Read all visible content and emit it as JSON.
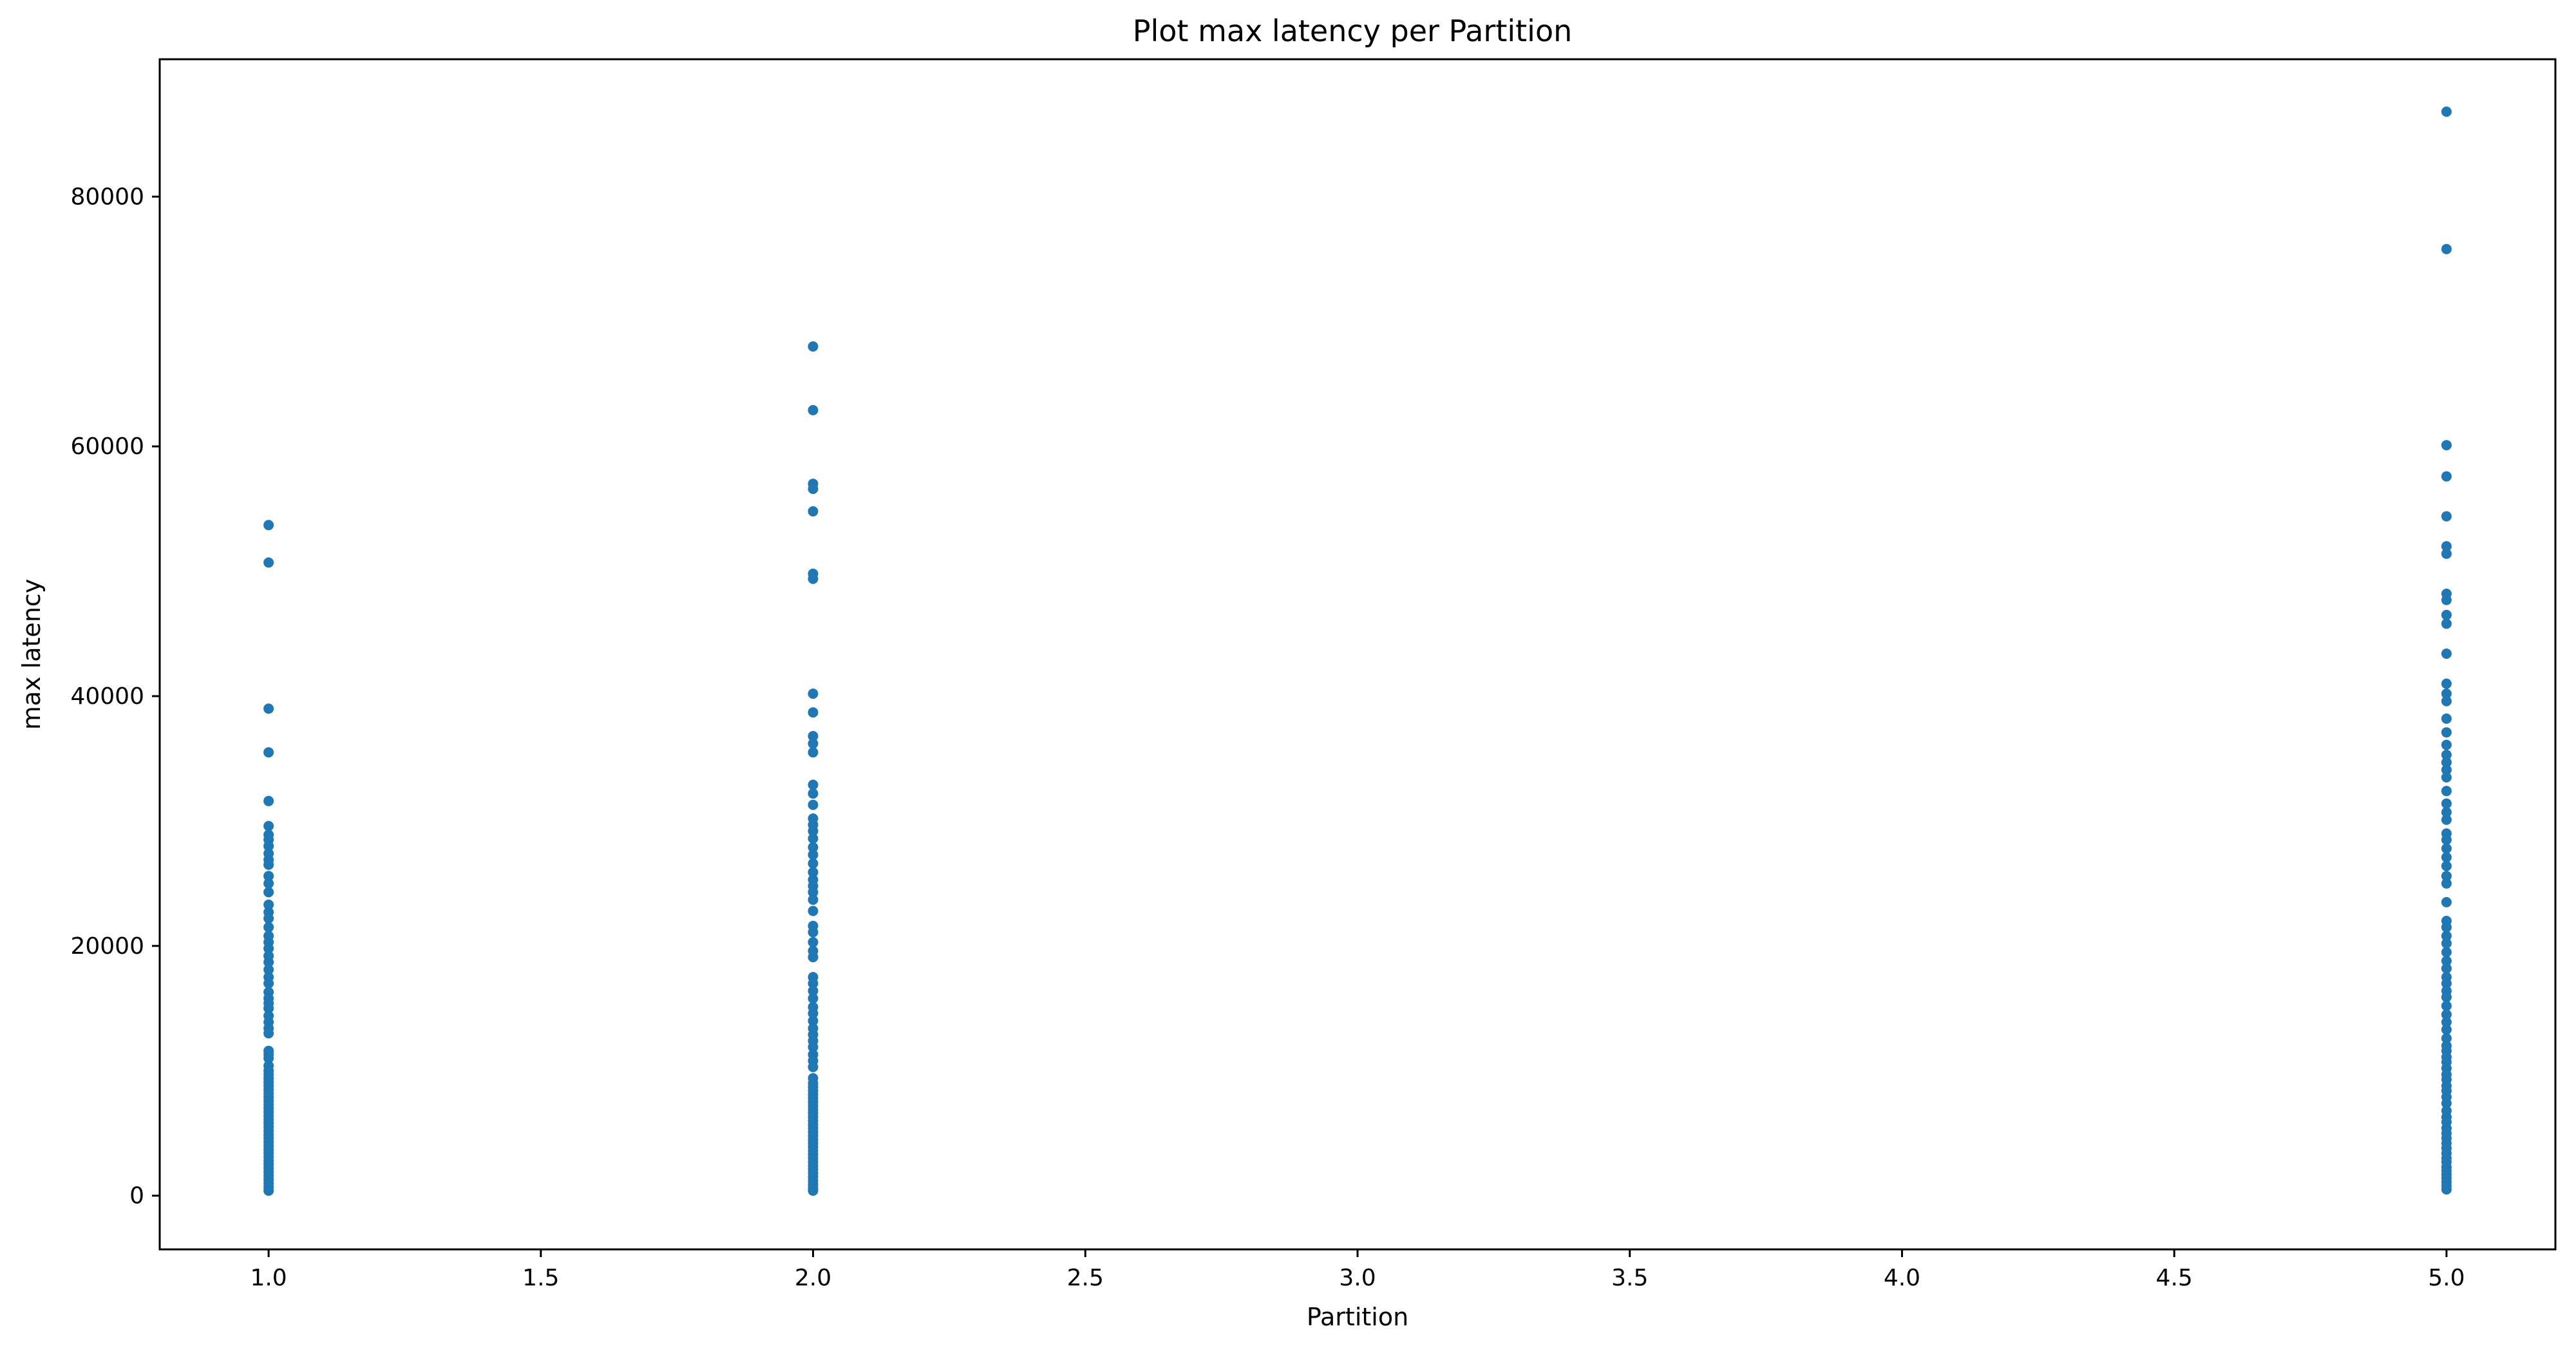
{
  "chart_data": {
    "type": "scatter",
    "title": "Plot max latency per Partition",
    "xlabel": "Partition",
    "ylabel": "max latency",
    "xlim": [
      0.8,
      5.2
    ],
    "ylim": [
      -4300,
      91000
    ],
    "xticks": [
      1.0,
      1.5,
      2.0,
      2.5,
      3.0,
      3.5,
      4.0,
      4.5,
      5.0
    ],
    "xtick_labels": [
      "1.0",
      "1.5",
      "2.0",
      "2.5",
      "3.0",
      "3.5",
      "4.0",
      "4.5",
      "5.0"
    ],
    "yticks": [
      0,
      20000,
      40000,
      60000,
      80000
    ],
    "ytick_labels": [
      "0",
      "20000",
      "40000",
      "60000",
      "80000"
    ],
    "grid": false,
    "marker_color": "#1f77b4",
    "series": [
      {
        "x": 1.0,
        "y": [
          53700,
          50700,
          39000,
          35500,
          31600,
          29600,
          28900,
          28500,
          28000,
          27400,
          26900,
          26500,
          25600,
          25000,
          24300,
          23300,
          22700,
          22200,
          21500,
          20800,
          20300,
          19800,
          19200,
          18700,
          18100,
          17500,
          17000,
          16300,
          15800,
          15400,
          15000,
          14400,
          13900,
          13400,
          13000,
          11600,
          11300,
          11000,
          10400,
          10000,
          9700,
          9400,
          9100,
          8800,
          8500,
          8200,
          7900,
          7600,
          7300,
          7000,
          6700,
          6400,
          6100,
          5800,
          5500,
          5200,
          4900,
          4600,
          4300,
          4000,
          3700,
          3400,
          3100,
          2800,
          2500,
          2200,
          1900,
          1600,
          1300,
          1000,
          700,
          400
        ]
      },
      {
        "x": 2.0,
        "y": [
          68000,
          62900,
          57000,
          56600,
          54800,
          49800,
          49400,
          40200,
          38700,
          36800,
          36200,
          35500,
          32900,
          32200,
          31300,
          30200,
          29700,
          29200,
          28600,
          27900,
          27300,
          26600,
          25900,
          25300,
          24800,
          24300,
          23700,
          22800,
          21600,
          21100,
          20300,
          19600,
          19100,
          17500,
          17000,
          16400,
          15800,
          15100,
          14600,
          14000,
          13400,
          12900,
          12400,
          11900,
          11300,
          10800,
          10300,
          9400,
          9000,
          8700,
          8400,
          8100,
          7800,
          7500,
          7200,
          6900,
          6600,
          6300,
          6000,
          5700,
          5400,
          5100,
          4800,
          4500,
          4200,
          3900,
          3600,
          3300,
          3000,
          2700,
          2400,
          2100,
          1800,
          1500,
          1200,
          900,
          600,
          400
        ]
      },
      {
        "x": 5.0,
        "y": [
          86800,
          75800,
          60100,
          57600,
          54400,
          52000,
          51400,
          48200,
          47700,
          46500,
          45800,
          43400,
          41000,
          40200,
          39600,
          38200,
          37100,
          36100,
          35300,
          34700,
          34100,
          33500,
          32400,
          31400,
          30700,
          30100,
          29000,
          28500,
          27800,
          27100,
          26400,
          25600,
          25000,
          23500,
          22000,
          21500,
          20800,
          20200,
          19500,
          18800,
          18200,
          17500,
          17000,
          16400,
          15900,
          15200,
          14500,
          13900,
          13300,
          12600,
          12000,
          11600,
          11100,
          10700,
          10200,
          9700,
          9300,
          8800,
          8400,
          7900,
          7400,
          6800,
          6300,
          5900,
          5400,
          5000,
          4600,
          4200,
          3800,
          3400,
          3000,
          2700,
          2300,
          2000,
          1700,
          1400,
          1100,
          800,
          500
        ]
      }
    ]
  }
}
